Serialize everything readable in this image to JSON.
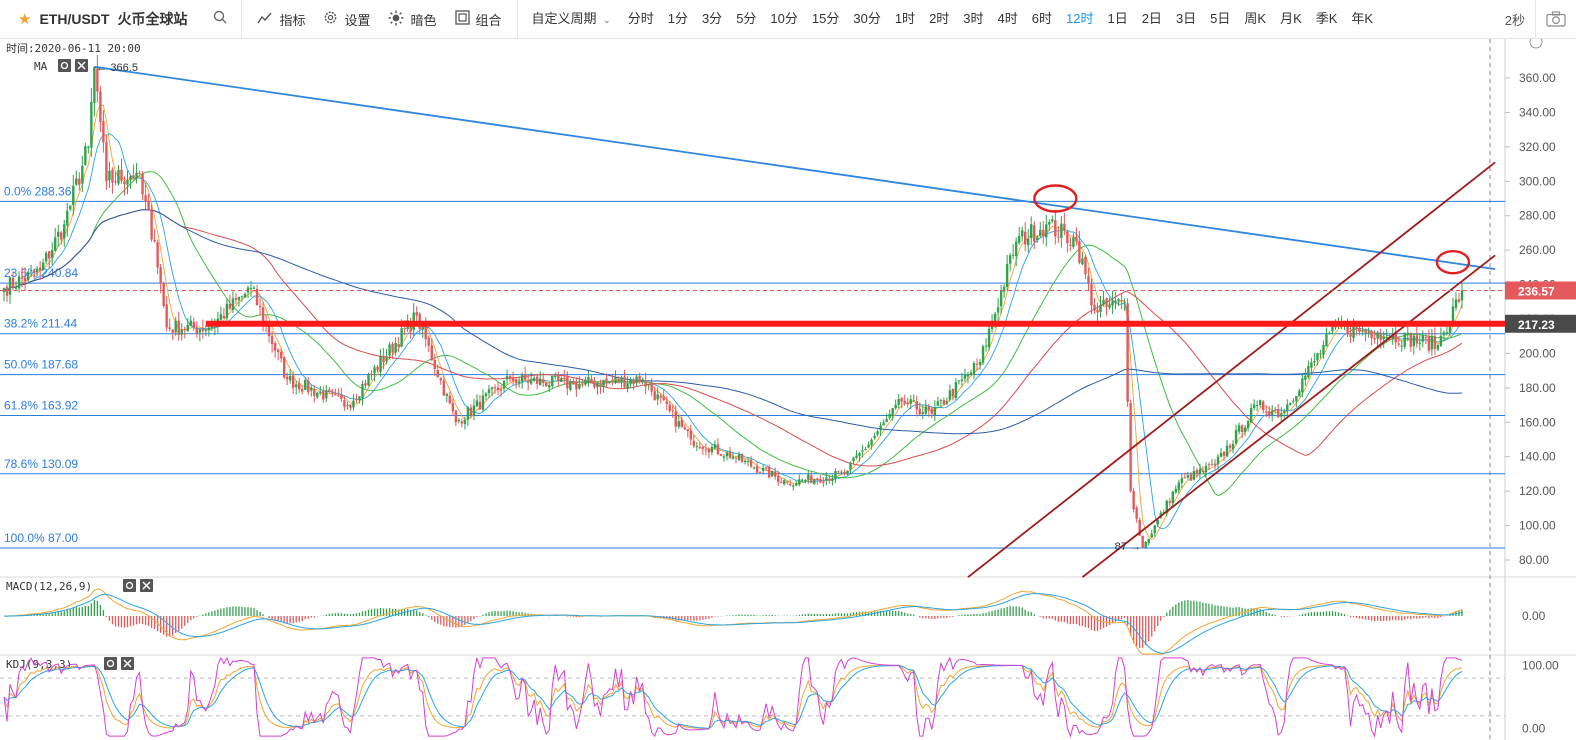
{
  "toolbar": {
    "symbol": "ETH/USDT",
    "exchange": "火币全球站",
    "indicators_label": "指标",
    "settings_label": "设置",
    "theme_label": "暗色",
    "combo_label": "组合",
    "custom_period_label": "自定义周期",
    "intervals": [
      "分时",
      "1分",
      "3分",
      "5分",
      "10分",
      "15分",
      "30分",
      "1时",
      "2时",
      "3时",
      "4时",
      "6时",
      "12时",
      "1日",
      "2日",
      "3日",
      "5日",
      "周K",
      "月K",
      "季K",
      "年K"
    ],
    "active_interval": "12时",
    "refresh_label": "2秒"
  },
  "main": {
    "time_label": "时间:2020-06-11 20:00",
    "ma_label": "MA",
    "high_marker": "366.5",
    "low_marker": "87",
    "price_axis": [
      "360.00",
      "340.00",
      "320.00",
      "300.00",
      "280.00",
      "260.00",
      "240.00",
      "220.00",
      "200.00",
      "180.00",
      "160.00",
      "140.00",
      "120.00",
      "100.00",
      "80.00"
    ],
    "current_price": "236.57",
    "line_price": "217.23",
    "fib_labels": [
      {
        "text": "0.0% 288.36",
        "value": 288.36
      },
      {
        "text": "23.6% 240.84",
        "value": 240.84
      },
      {
        "text": "38.2% 211.44",
        "value": 211.44
      },
      {
        "text": "50.0% 187.68",
        "value": 187.68
      },
      {
        "text": "61.8% 163.92",
        "value": 163.92
      },
      {
        "text": "78.6% 130.09",
        "value": 130.09
      },
      {
        "text": "100.0% 87.00",
        "value": 87.0
      }
    ]
  },
  "macd": {
    "label": "MACD(12,26,9)",
    "axis": [
      "0.00"
    ]
  },
  "kdj": {
    "label": "KDJ(9,3,3)",
    "axis": [
      "100.00",
      "0.00"
    ]
  },
  "colors": {
    "up": "#31a24c",
    "down": "#e5585b",
    "fib": "#2b7de0",
    "trend": "#2e86de",
    "channel": "#a01a1a",
    "support": "#ff1a1a",
    "circle": "#e02020",
    "price_tag": "#e5585b",
    "line_tag": "#4a4a4a"
  },
  "chart_data": {
    "type": "candlestick",
    "title": "",
    "ylim": [
      70,
      375
    ],
    "y_ticks": [
      80,
      100,
      120,
      140,
      160,
      180,
      200,
      220,
      240,
      260,
      280,
      300,
      320,
      340,
      360
    ],
    "anchors": [
      {
        "i": 0,
        "p": 238
      },
      {
        "i": 12,
        "p": 248
      },
      {
        "i": 20,
        "p": 275
      },
      {
        "i": 28,
        "p": 320
      },
      {
        "i": 30,
        "p": 366.5
      },
      {
        "i": 34,
        "p": 300
      },
      {
        "i": 44,
        "p": 305
      },
      {
        "i": 50,
        "p": 265
      },
      {
        "i": 54,
        "p": 215
      },
      {
        "i": 68,
        "p": 215
      },
      {
        "i": 82,
        "p": 238
      },
      {
        "i": 94,
        "p": 185
      },
      {
        "i": 114,
        "p": 170
      },
      {
        "i": 137,
        "p": 222
      },
      {
        "i": 150,
        "p": 160
      },
      {
        "i": 168,
        "p": 185
      },
      {
        "i": 189,
        "p": 182
      },
      {
        "i": 212,
        "p": 185
      },
      {
        "i": 228,
        "p": 150
      },
      {
        "i": 242,
        "p": 140
      },
      {
        "i": 260,
        "p": 125
      },
      {
        "i": 279,
        "p": 130
      },
      {
        "i": 298,
        "p": 172
      },
      {
        "i": 308,
        "p": 165
      },
      {
        "i": 324,
        "p": 195
      },
      {
        "i": 336,
        "p": 265
      },
      {
        "i": 346,
        "p": 275
      },
      {
        "i": 356,
        "p": 265
      },
      {
        "i": 362,
        "p": 225
      },
      {
        "i": 372,
        "p": 230
      },
      {
        "i": 374,
        "p": 120
      },
      {
        "i": 378,
        "p": 87
      },
      {
        "i": 390,
        "p": 125
      },
      {
        "i": 402,
        "p": 135
      },
      {
        "i": 416,
        "p": 170
      },
      {
        "i": 424,
        "p": 165
      },
      {
        "i": 442,
        "p": 215
      },
      {
        "i": 456,
        "p": 212
      },
      {
        "i": 476,
        "p": 205
      },
      {
        "i": 484,
        "p": 236.57
      }
    ],
    "bars": 485,
    "fib_levels": [
      288.36,
      240.84,
      211.44,
      187.68,
      163.92,
      130.09,
      87.0
    ],
    "support_line": 217.23,
    "last_price": 236.57,
    "trendline": {
      "from": {
        "i": 30,
        "p": 366.5
      },
      "to": {
        "i": 495,
        "p": 249
      }
    },
    "channel_lower": {
      "from": {
        "i": 358,
        "p": 70
      },
      "to": {
        "i": 495,
        "p": 257
      }
    },
    "channel_upper": {
      "from": {
        "i": 320,
        "p": 70
      },
      "to": {
        "i": 495,
        "p": 311
      }
    },
    "macd_range": [
      -20,
      20
    ],
    "kdj_range": [
      -15,
      115
    ]
  }
}
